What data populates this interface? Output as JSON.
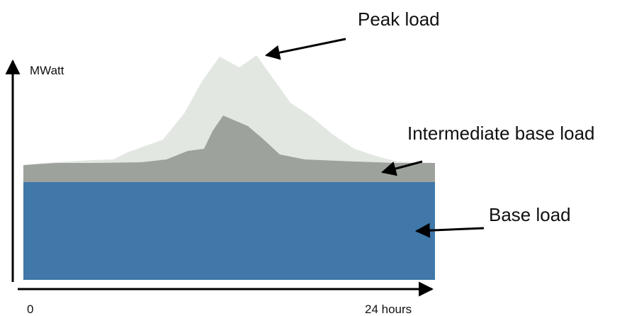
{
  "y_axis_label": "MWatt",
  "x_axis": {
    "start": "0",
    "end": "24 hours"
  },
  "labels": {
    "peak": "Peak load",
    "intermediate": "Intermediate base load",
    "base": "Base load"
  }
}
